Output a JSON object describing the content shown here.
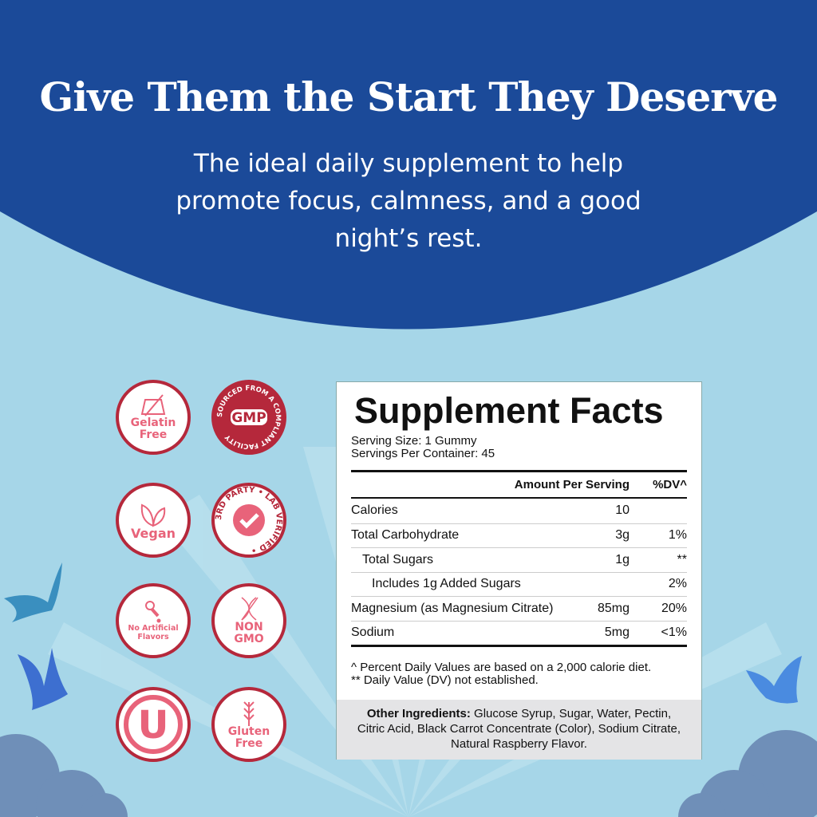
{
  "hero": {
    "title": "Give Them the Start They Deserve",
    "subtitle": "The ideal daily supplement to help promote focus, calmness, and a good night’s rest."
  },
  "colors": {
    "navy": "#1b4a99",
    "sky": "#a6d6e8",
    "badge_red": "#b5283b",
    "badge_pink": "#e8637a"
  },
  "badges": [
    {
      "icon": "gelatin-icon",
      "label1": "Gelatin",
      "label2": "Free"
    },
    {
      "icon": "gmp-icon",
      "ring": "SOURCED FROM A COMPLIANT FACILITY",
      "center": "GMP"
    },
    {
      "icon": "leaf-icon",
      "label1": "Vegan"
    },
    {
      "icon": "check-icon",
      "ring": "3RD PARTY • LAB VERIFIED •"
    },
    {
      "icon": "dropper-icon",
      "label1": "No Artificial",
      "label2": "Flavors"
    },
    {
      "icon": "dna-icon",
      "label1": "NON",
      "label2": "GMO"
    },
    {
      "icon": "kosher-u-icon",
      "center": "U"
    },
    {
      "icon": "wheat-icon",
      "label1": "Gluten",
      "label2": "Free"
    }
  ],
  "facts": {
    "title": "Supplement Facts",
    "serving_size": "Serving Size: 1 Gummy",
    "servings": "Servings Per Container: 45",
    "header": {
      "amount": "Amount Per Serving",
      "dv": "%DV^"
    },
    "rows": [
      {
        "name": "Calories",
        "amount": "10",
        "dv": ""
      },
      {
        "name": "Total Carbohydrate",
        "amount": "3g",
        "dv": "1%"
      },
      {
        "name": "Total Sugars",
        "amount": "1g",
        "dv": "**"
      },
      {
        "name": "Includes 1g Added Sugars",
        "amount": "",
        "dv": "2%"
      },
      {
        "name": "Magnesium (as Magnesium Citrate)",
        "amount": "85mg",
        "dv": "20%"
      },
      {
        "name": "Sodium",
        "amount": "5mg",
        "dv": "<1%"
      }
    ],
    "footnote1": "^ Percent Daily Values are based on a 2,000 calorie diet.",
    "footnote2": "** Daily Value (DV) not established.",
    "ingredients_label": "Other Ingredients:",
    "ingredients": " Glucose Syrup, Sugar, Water, Pectin, Citric Acid, Black Carrot Concentrate (Color), Sodium Citrate, Natural Raspberry Flavor."
  }
}
